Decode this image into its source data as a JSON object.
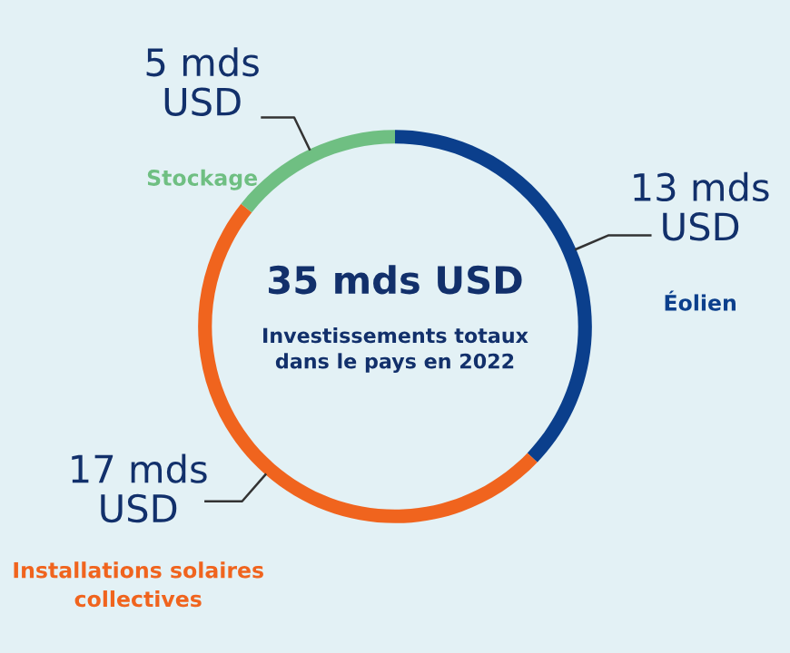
{
  "chart_data": {
    "type": "donut",
    "title": "35 mds USD",
    "subtitle": "Investissements totaux dans le pays en 2022",
    "categories": [
      "Éolien",
      "Installations solaires collectives",
      "Stockage"
    ],
    "values": [
      13,
      17,
      5
    ],
    "colors": [
      "#0b3f8c",
      "#f0641e",
      "#6fbf82"
    ],
    "value_labels": [
      "13 mds USD",
      "17 mds USD",
      "5 mds USD"
    ],
    "legend": false
  }
}
